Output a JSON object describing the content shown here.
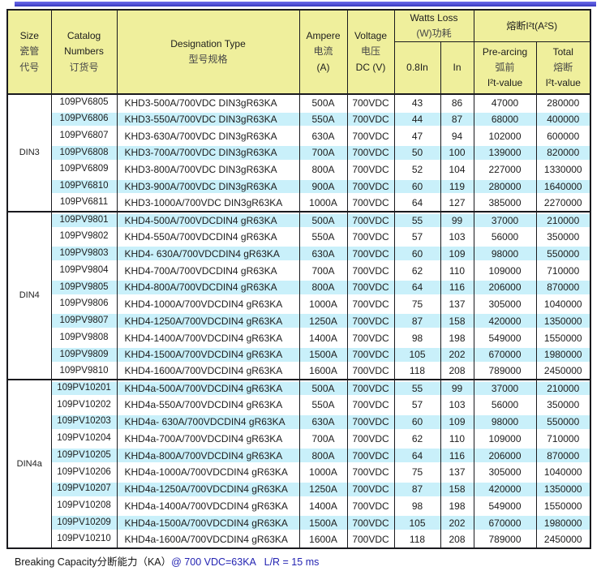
{
  "page": {
    "footer": {
      "prefix": "Breaking Capacity分断能力（KA）",
      "detail": "@ 700 VDC=63KA   L/R = 15 ms"
    }
  },
  "colors": {
    "header_bg": "#EFEF9C",
    "stripe_bg": "#C9F0FA",
    "border": "#1a1a1e",
    "top_bar": "#5353D6",
    "footer_blue": "#2323B2"
  },
  "table": {
    "header": {
      "size_lines": [
        "Size",
        "瓷管",
        "代号"
      ],
      "catalog_lines": [
        "Catalog",
        "Numbers",
        "订货号"
      ],
      "designation_lines": [
        "Designation Type",
        "型号规格"
      ],
      "ampere_lines": [
        "Ampere",
        "电流",
        "(A)"
      ],
      "voltage_lines": [
        "Voltage",
        "电压",
        "DC (V)"
      ],
      "watts_group_lines": [
        "Watts Loss",
        "(W)功耗"
      ],
      "i2t_group_label": "熔断I²t(A²S)",
      "sub_08in": "0.8In",
      "sub_in": "In",
      "prearcing_lines": [
        "Pre-arcing",
        "弧前",
        "I²t-value"
      ],
      "total_lines": [
        "Total",
        "熔断",
        "I²t-value"
      ]
    },
    "sections": [
      {
        "size_label": "DIN3",
        "rows": [
          [
            "109PV6805",
            "KHD3-500A/700VDC DIN3gR63KA",
            "500A",
            "700VDC",
            "43",
            "86",
            "47000",
            "280000"
          ],
          [
            "109PV6806",
            "KHD3-550A/700VDC DIN3gR63KA",
            "550A",
            "700VDC",
            "44",
            "87",
            "68000",
            "400000"
          ],
          [
            "109PV6807",
            "KHD3-630A/700VDC DIN3gR63KA",
            "630A",
            "700VDC",
            "47",
            "94",
            "102000",
            "600000"
          ],
          [
            "109PV6808",
            "KHD3-700A/700VDC DIN3gR63KA",
            "700A",
            "700VDC",
            "50",
            "100",
            "139000",
            "820000"
          ],
          [
            "109PV6809",
            "KHD3-800A/700VDC DIN3gR63KA",
            "800A",
            "700VDC",
            "52",
            "104",
            "227000",
            "1330000"
          ],
          [
            "109PV6810",
            "KHD3-900A/700VDC DIN3gR63KA",
            "900A",
            "700VDC",
            "60",
            "119",
            "280000",
            "1640000"
          ],
          [
            "109PV6811",
            "KHD3-1000A/700VDC DIN3gR63KA",
            "1000A",
            "700VDC",
            "64",
            "127",
            "385000",
            "2270000"
          ]
        ]
      },
      {
        "size_label": "DIN4",
        "rows": [
          [
            "109PV9801",
            "KHD4-500A/700VDCDIN4 gR63KA",
            "500A",
            "700VDC",
            "55",
            "99",
            "37000",
            "210000"
          ],
          [
            "109PV9802",
            "KHD4-550A/700VDCDIN4 gR63KA",
            "550A",
            "700VDC",
            "57",
            "103",
            "56000",
            "350000"
          ],
          [
            "109PV9803",
            "KHD4- 630A/700VDCDIN4 gR63KA",
            "630A",
            "700VDC",
            "60",
            "109",
            "98000",
            "550000"
          ],
          [
            "109PV9804",
            "KHD4-700A/700VDCDIN4 gR63KA",
            "700A",
            "700VDC",
            "62",
            "110",
            "109000",
            "710000"
          ],
          [
            "109PV9805",
            "KHD4-800A/700VDCDIN4 gR63KA",
            "800A",
            "700VDC",
            "64",
            "116",
            "206000",
            "870000"
          ],
          [
            "109PV9806",
            "KHD4-1000A/700VDCDIN4 gR63KA",
            "1000A",
            "700VDC",
            "75",
            "137",
            "305000",
            "1040000"
          ],
          [
            "109PV9807",
            "KHD4-1250A/700VDCDIN4 gR63KA",
            "1250A",
            "700VDC",
            "87",
            "158",
            "420000",
            "1350000"
          ],
          [
            "109PV9808",
            "KHD4-1400A/700VDCDIN4 gR63KA",
            "1400A",
            "700VDC",
            "98",
            "198",
            "549000",
            "1550000"
          ],
          [
            "109PV9809",
            "KHD4-1500A/700VDCDIN4 gR63KA",
            "1500A",
            "700VDC",
            "105",
            "202",
            "670000",
            "1980000"
          ],
          [
            "109PV9810",
            "KHD4-1600A/700VDCDIN4 gR63KA",
            "1600A",
            "700VDC",
            "118",
            "208",
            "789000",
            "2450000"
          ]
        ]
      },
      {
        "size_label": "DIN4a",
        "rows": [
          [
            "109PV10201",
            "KHD4a-500A/700VDCDIN4 gR63KA",
            "500A",
            "700VDC",
            "55",
            "99",
            "37000",
            "210000"
          ],
          [
            "109PV10202",
            "KHD4a-550A/700VDCDIN4 gR63KA",
            "550A",
            "700VDC",
            "57",
            "103",
            "56000",
            "350000"
          ],
          [
            "109PV10203",
            "KHD4a- 630A/700VDCDIN4 gR63KA",
            "630A",
            "700VDC",
            "60",
            "109",
            "98000",
            "550000"
          ],
          [
            "109PV10204",
            "KHD4a-700A/700VDCDIN4 gR63KA",
            "700A",
            "700VDC",
            "62",
            "110",
            "109000",
            "710000"
          ],
          [
            "109PV10205",
            "KHD4a-800A/700VDCDIN4 gR63KA",
            "800A",
            "700VDC",
            "64",
            "116",
            "206000",
            "870000"
          ],
          [
            "109PV10206",
            "KHD4a-1000A/700VDCDIN4 gR63KA",
            "1000A",
            "700VDC",
            "75",
            "137",
            "305000",
            "1040000"
          ],
          [
            "109PV10207",
            "KHD4a-1250A/700VDCDIN4 gR63KA",
            "1250A",
            "700VDC",
            "87",
            "158",
            "420000",
            "1350000"
          ],
          [
            "109PV10208",
            "KHD4a-1400A/700VDCDIN4 gR63KA",
            "1400A",
            "700VDC",
            "98",
            "198",
            "549000",
            "1550000"
          ],
          [
            "109PV10209",
            "KHD4a-1500A/700VDCDIN4 gR63KA",
            "1500A",
            "700VDC",
            "105",
            "202",
            "670000",
            "1980000"
          ],
          [
            "109PV10210",
            "KHD4a-1600A/700VDCDIN4 gR63KA",
            "1600A",
            "700VDC",
            "118",
            "208",
            "789000",
            "2450000"
          ]
        ]
      }
    ]
  }
}
